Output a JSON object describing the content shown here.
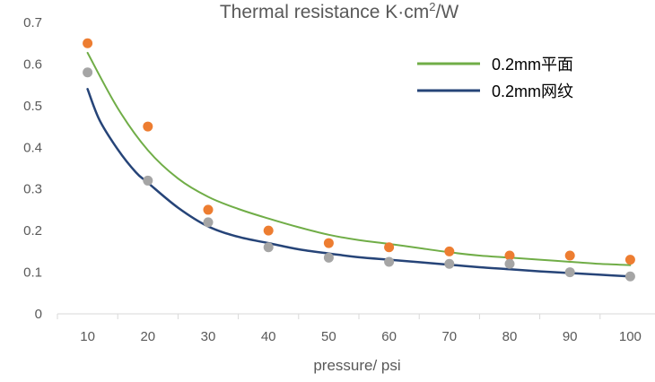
{
  "chart_data": {
    "type": "scatter",
    "title": "Thermal resistance K·cm",
    "title_superscript": "2",
    "title_suffix": "/W",
    "xlabel": "pressure/ psi",
    "ylabel": "",
    "x_ticks": [
      10,
      20,
      30,
      40,
      50,
      60,
      70,
      80,
      90,
      100
    ],
    "y_ticks": [
      0,
      0.1,
      0.2,
      0.3,
      0.4,
      0.5,
      0.6,
      0.7
    ],
    "y_tick_labels": [
      "0",
      "0.1",
      "0.2",
      "0.3",
      "0.4",
      "0.5",
      "0.6",
      "0.7"
    ],
    "xlim": [
      5,
      105
    ],
    "ylim": [
      0,
      0.7
    ],
    "grid": false,
    "legend_position": "top-right",
    "series": [
      {
        "name": "",
        "kind": "points",
        "color": "#ED7D31",
        "x": [
          10,
          20,
          30,
          40,
          50,
          60,
          70,
          80,
          90,
          100
        ],
        "y": [
          0.65,
          0.45,
          0.25,
          0.2,
          0.17,
          0.16,
          0.15,
          0.14,
          0.14,
          0.13
        ]
      },
      {
        "name": "",
        "kind": "points",
        "color": "#A5A5A5",
        "x": [
          10,
          20,
          30,
          40,
          50,
          60,
          70,
          80,
          90,
          100
        ],
        "y": [
          0.58,
          0.32,
          0.22,
          0.16,
          0.135,
          0.125,
          0.12,
          0.12,
          0.1,
          0.09
        ]
      },
      {
        "name": "0.2mm平面",
        "kind": "trendline",
        "color": "#70AD47",
        "x": [
          10,
          15,
          20,
          25,
          30,
          35,
          40,
          45,
          50,
          55,
          60,
          65,
          70,
          75,
          80,
          85,
          90,
          95,
          100
        ],
        "y": [
          0.627,
          0.494,
          0.393,
          0.325,
          0.281,
          0.252,
          0.229,
          0.208,
          0.19,
          0.177,
          0.168,
          0.158,
          0.148,
          0.14,
          0.135,
          0.13,
          0.125,
          0.12,
          0.117
        ]
      },
      {
        "name": "0.2mm网纹",
        "kind": "trendline",
        "color": "#264478",
        "x": [
          10,
          12,
          15,
          18,
          20,
          25,
          30,
          35,
          40,
          45,
          50,
          55,
          60,
          65,
          70,
          75,
          80,
          85,
          90,
          95,
          100
        ],
        "y": [
          0.54,
          0.465,
          0.395,
          0.34,
          0.315,
          0.255,
          0.21,
          0.185,
          0.17,
          0.155,
          0.145,
          0.136,
          0.13,
          0.124,
          0.118,
          0.112,
          0.107,
          0.102,
          0.098,
          0.094,
          0.09
        ]
      }
    ]
  }
}
